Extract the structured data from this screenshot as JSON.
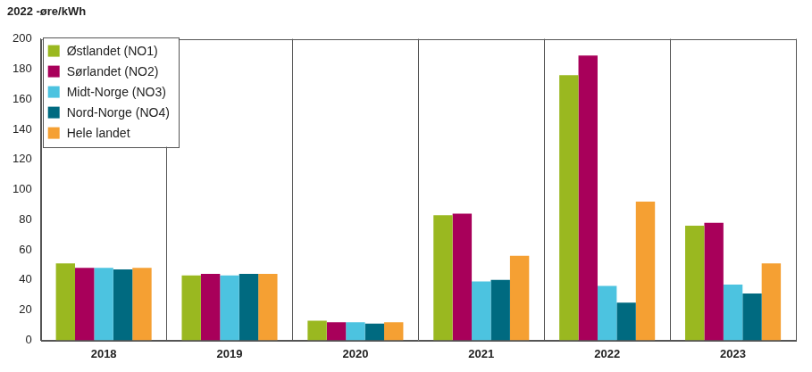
{
  "chart_data": {
    "type": "bar",
    "ylabel": "2022 -øre/kWh",
    "categories": [
      "2018",
      "2019",
      "2020",
      "2021",
      "2022",
      "2023"
    ],
    "series": [
      {
        "name": "Østlandet (NO1)",
        "color": "#9ab820",
        "values": [
          51,
          43,
          13,
          83,
          176,
          76
        ]
      },
      {
        "name": "Sørlandet (NO2)",
        "color": "#a8005a",
        "values": [
          48,
          44,
          12,
          84,
          189,
          78
        ]
      },
      {
        "name": "Midt-Norge (NO3)",
        "color": "#4cc3e0",
        "values": [
          48,
          43,
          12,
          39,
          36,
          37
        ]
      },
      {
        "name": "Nord-Norge (NO4)",
        "color": "#006a80",
        "values": [
          47,
          44,
          11,
          40,
          25,
          31
        ]
      },
      {
        "name": "Hele landet",
        "color": "#f5a033",
        "values": [
          48,
          44,
          12,
          56,
          92,
          51
        ]
      }
    ],
    "ylim": [
      0,
      200
    ],
    "yticks": [
      0,
      20,
      40,
      60,
      80,
      100,
      120,
      140,
      160,
      180,
      200
    ],
    "grid": "x",
    "legend": "upper left"
  }
}
